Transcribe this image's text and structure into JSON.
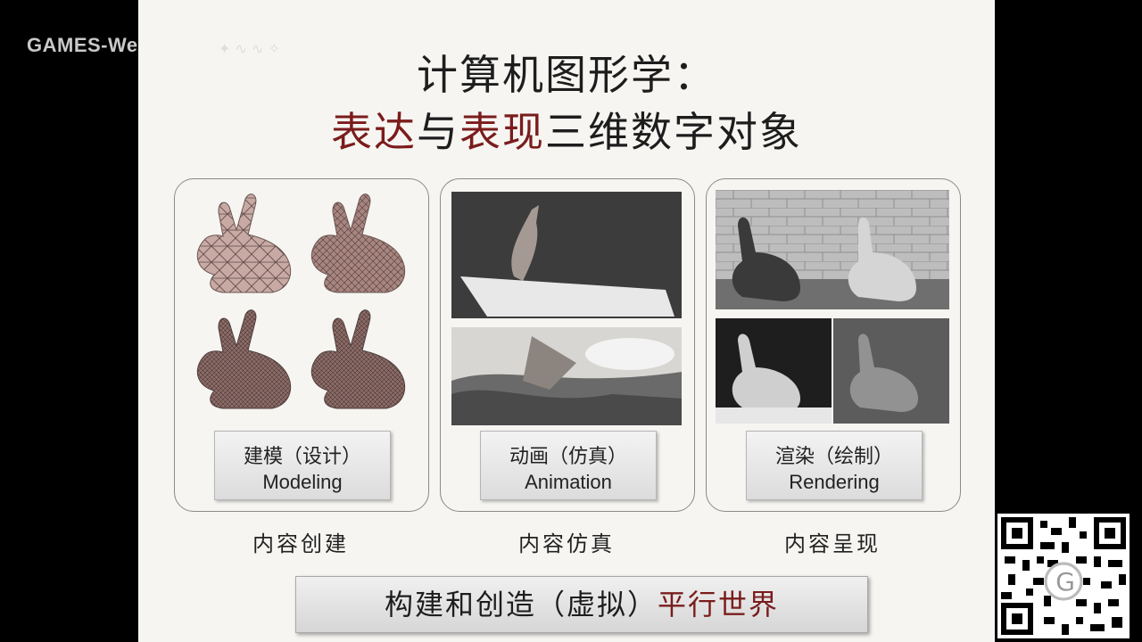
{
  "watermark": {
    "text": "GAMES-We"
  },
  "title": {
    "line1": "计算机图形学：",
    "line2_part1": "表达",
    "line2_part2": "与",
    "line2_part3": "表现",
    "line2_part4": "三维数字对象"
  },
  "panels": [
    {
      "label_cn": "建模（设计）",
      "label_en": "Modeling",
      "caption": "内容创建"
    },
    {
      "label_cn": "动画（仿真）",
      "label_en": "Animation",
      "caption": "内容仿真"
    },
    {
      "label_cn": "渲染（绘制）",
      "label_en": "Rendering",
      "caption": "内容呈现"
    }
  ],
  "banner": {
    "part1": "构建和创造（虚拟）",
    "part2": "平行世界"
  },
  "colors": {
    "accent": "#7a1c1c",
    "slide_bg": "#f6f5f2"
  }
}
